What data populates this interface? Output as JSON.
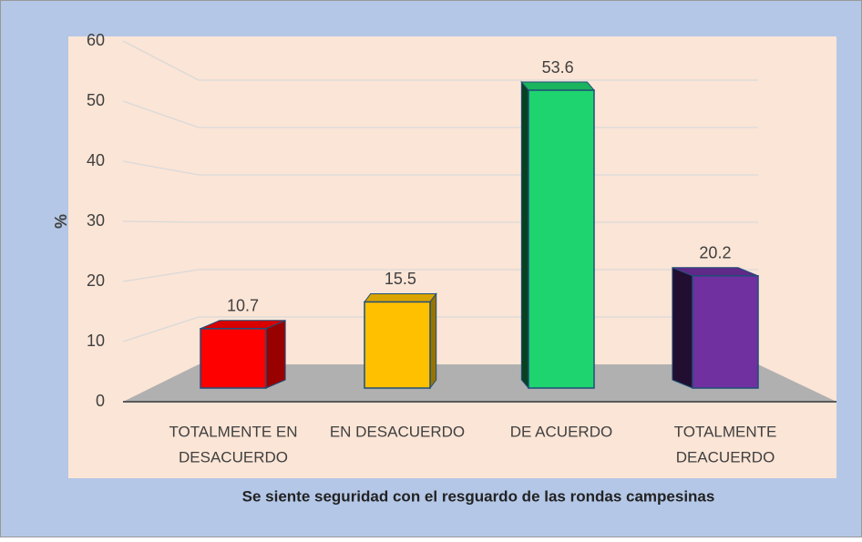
{
  "chart_data": {
    "type": "bar3d",
    "x_label": "Se siente seguridad con el resguardo de las rondas campesinas",
    "y_label": "%",
    "categories": [
      [
        "TOTALMENTE EN",
        "DESACUERDO"
      ],
      [
        "EN DESACUERDO"
      ],
      [
        "DE ACUERDO"
      ],
      [
        "TOTALMENTE",
        "DEACUERDO"
      ]
    ],
    "values": [
      10.7,
      15.5,
      53.6,
      20.2
    ],
    "colors": [
      "#ff0000",
      "#ffc000",
      "#1ed46e",
      "#7030a0"
    ],
    "ylim": [
      0,
      60
    ],
    "yticks": [
      0,
      10,
      20,
      30,
      40,
      50,
      60
    ],
    "grid": true
  }
}
